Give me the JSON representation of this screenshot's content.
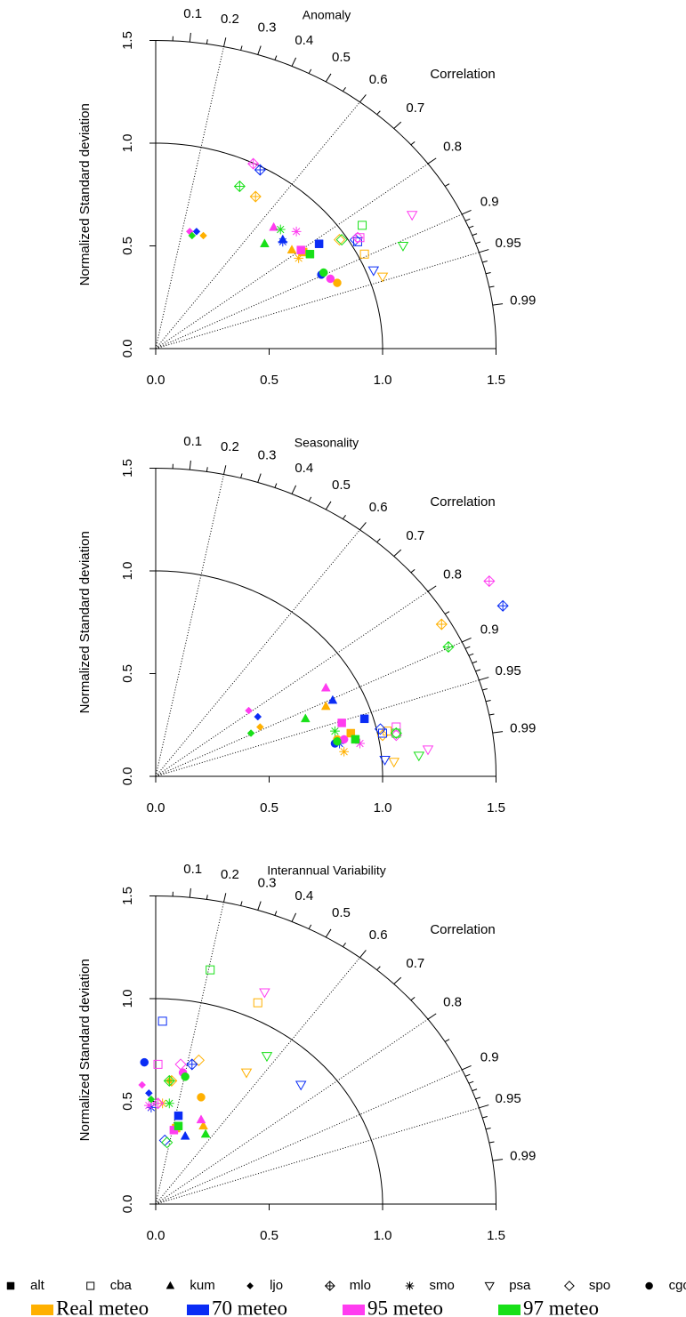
{
  "chart_data": [
    {
      "type": "taylor",
      "title": "Anomaly",
      "cor_label": "Correlation",
      "ylabel": "Normalized Standard deviation",
      "xlim": [
        0,
        1.5
      ],
      "ylim": [
        0,
        1.5
      ],
      "ref_sd": 1,
      "xticks": [
        {
          "value": 0,
          "label": "0.0"
        },
        0.5,
        {
          "value": 1,
          "label": "1.0"
        },
        1.5
      ],
      "yticks": [
        {
          "value": 0,
          "label": "0.0"
        },
        0.5,
        {
          "value": 1,
          "label": "1.0"
        },
        1.5
      ],
      "cor_ticks": [
        0.1,
        0.2,
        0.3,
        0.4,
        0.5,
        0.6,
        0.7,
        0.8,
        0.9,
        0.95,
        0.99
      ],
      "cor_minor": [
        0.05,
        0.15,
        0.25,
        0.35,
        0.45,
        0.55,
        0.65,
        0.75,
        0.85,
        0.91,
        0.92,
        0.93,
        0.94,
        0.96,
        0.97,
        0.98
      ],
      "cor_lines": [
        0.2,
        0.6,
        0.8,
        0.9,
        0.95
      ],
      "series": [
        {
          "x": [
            0.65,
            0.92,
            0.6,
            0.21,
            0.44,
            0.63,
            1.0,
            0.81,
            0.8
          ],
          "y": [
            0.47,
            0.46,
            0.48,
            0.55,
            0.74,
            0.44,
            0.35,
            0.53,
            0.32
          ]
        },
        {
          "x": [
            0.72,
            0.89,
            0.56,
            0.18,
            0.46,
            0.56,
            0.96,
            0.88,
            0.73
          ],
          "y": [
            0.51,
            0.52,
            0.53,
            0.57,
            0.87,
            0.52,
            0.38,
            0.53,
            0.36
          ]
        },
        {
          "x": [
            0.64,
            0.9,
            0.52,
            0.15,
            0.43,
            0.62,
            1.13,
            0.89,
            0.77
          ],
          "y": [
            0.48,
            0.54,
            0.59,
            0.57,
            0.9,
            0.57,
            0.65,
            0.54,
            0.34
          ]
        },
        {
          "x": [
            0.68,
            0.91,
            0.48,
            0.16,
            0.37,
            0.55,
            1.09,
            0.82,
            0.74
          ],
          "y": [
            0.46,
            0.6,
            0.51,
            0.55,
            0.79,
            0.58,
            0.5,
            0.53,
            0.37
          ]
        }
      ]
    },
    {
      "type": "taylor",
      "title": "Seasonality",
      "cor_label": "Correlation",
      "ylabel": "Normalized Standard deviation",
      "xlim": [
        0,
        1.5
      ],
      "ylim": [
        0,
        1.5
      ],
      "ref_sd": 1,
      "xticks": [
        {
          "value": 0,
          "label": "0.0"
        },
        0.5,
        {
          "value": 1,
          "label": "1.0"
        },
        1.5
      ],
      "yticks": [
        {
          "value": 0,
          "label": "0.0"
        },
        0.5,
        {
          "value": 1,
          "label": "1.0"
        },
        1.5
      ],
      "cor_ticks": [
        0.1,
        0.2,
        0.3,
        0.4,
        0.5,
        0.6,
        0.7,
        0.8,
        0.9,
        0.95,
        0.99
      ],
      "cor_minor": [
        0.05,
        0.15,
        0.25,
        0.35,
        0.45,
        0.55,
        0.65,
        0.75,
        0.85,
        0.91,
        0.92,
        0.93,
        0.94,
        0.96,
        0.97,
        0.98
      ],
      "cor_lines": [
        0.2,
        0.6,
        0.8,
        0.9,
        0.95
      ],
      "series": [
        {
          "x": [
            0.86,
            1.02,
            0.75,
            0.46,
            1.26,
            0.83,
            1.05,
            1.0,
            0.8
          ],
          "y": [
            0.21,
            0.22,
            0.34,
            0.24,
            0.74,
            0.12,
            0.07,
            0.2,
            0.18
          ]
        },
        {
          "x": [
            0.92,
            1.0,
            0.78,
            0.45,
            1.53,
            0.81,
            1.01,
            0.99,
            0.79
          ],
          "y": [
            0.28,
            0.21,
            0.37,
            0.29,
            0.83,
            0.16,
            0.08,
            0.23,
            0.16
          ]
        },
        {
          "x": [
            0.82,
            1.06,
            0.75,
            0.41,
            1.47,
            0.9,
            1.2,
            1.06,
            0.83
          ],
          "y": [
            0.26,
            0.24,
            0.43,
            0.32,
            0.95,
            0.16,
            0.13,
            0.2,
            0.18
          ]
        },
        {
          "x": [
            0.88,
            1.06,
            0.66,
            0.42,
            1.29,
            0.79,
            1.16,
            1.06,
            0.8
          ],
          "y": [
            0.18,
            0.21,
            0.28,
            0.21,
            0.63,
            0.22,
            0.1,
            0.21,
            0.17
          ]
        }
      ]
    },
    {
      "type": "taylor",
      "title": "Interannual Variability",
      "cor_label": "Correlation",
      "ylabel": "Normalized Standard deviation",
      "xlim": [
        0,
        1.5
      ],
      "ylim": [
        0,
        1.5
      ],
      "ref_sd": 1,
      "xticks": [
        {
          "value": 0,
          "label": "0.0"
        },
        0.5,
        {
          "value": 1,
          "label": "1.0"
        },
        1.5
      ],
      "yticks": [
        {
          "value": 0,
          "label": "0.0"
        },
        0.5,
        {
          "value": 1,
          "label": "1.0"
        },
        1.5
      ],
      "cor_ticks": [
        0.1,
        0.2,
        0.3,
        0.4,
        0.5,
        0.6,
        0.7,
        0.8,
        0.9,
        0.95,
        0.99
      ],
      "cor_minor": [
        0.05,
        0.15,
        0.25,
        0.35,
        0.45,
        0.55,
        0.65,
        0.75,
        0.85,
        0.91,
        0.92,
        0.93,
        0.94,
        0.96,
        0.97,
        0.98
      ],
      "cor_lines": [
        0.2,
        0.6,
        0.8,
        0.9,
        0.95
      ],
      "series": [
        {
          "x": [
            0.09,
            0.45,
            0.21,
            0.06,
            0.07,
            0.03,
            0.4,
            0.19,
            0.2
          ],
          "y": [
            0.37,
            0.98,
            0.38,
            0.6,
            0.6,
            0.49,
            0.64,
            0.7,
            0.52
          ]
        },
        {
          "x": [
            0.1,
            0.03,
            0.13,
            -0.03,
            0.16,
            -0.02,
            0.64,
            0.04,
            -0.05
          ],
          "y": [
            0.43,
            0.89,
            0.33,
            0.54,
            0.68,
            0.47,
            0.58,
            0.31,
            0.69
          ]
        },
        {
          "x": [
            0.08,
            0.01,
            0.2,
            -0.06,
            0.01,
            -0.03,
            0.48,
            0.11,
            0.12
          ],
          "y": [
            0.36,
            0.68,
            0.41,
            0.58,
            0.49,
            0.48,
            1.03,
            0.68,
            0.64
          ]
        },
        {
          "x": [
            0.1,
            0.24,
            0.22,
            -0.02,
            0.06,
            0.06,
            0.49,
            0.05,
            0.13
          ],
          "y": [
            0.38,
            1.14,
            0.34,
            0.51,
            0.6,
            0.49,
            0.72,
            0.3,
            0.62
          ]
        }
      ]
    }
  ],
  "legend": {
    "markers": [
      {
        "label": "alt",
        "shape": "square"
      },
      {
        "label": "cba",
        "shape": "square-open"
      },
      {
        "label": "kum",
        "shape": "triangle"
      },
      {
        "label": "ljo",
        "shape": "diamond"
      },
      {
        "label": "mlo",
        "shape": "diamond-plus"
      },
      {
        "label": "smo",
        "shape": "asterisk"
      },
      {
        "label": "psa",
        "shape": "triangle-down-open"
      },
      {
        "label": "spo",
        "shape": "diamond-open"
      },
      {
        "label": "cgo",
        "shape": "circle"
      }
    ],
    "models": [
      {
        "name": "Real meteo",
        "color": "#ffb000"
      },
      {
        "name": "70 meteo",
        "color": "#0a2cf5"
      },
      {
        "name": "95 meteo",
        "color": "#ff3cf0"
      },
      {
        "name": "97 meteo",
        "color": "#18e018"
      }
    ]
  }
}
